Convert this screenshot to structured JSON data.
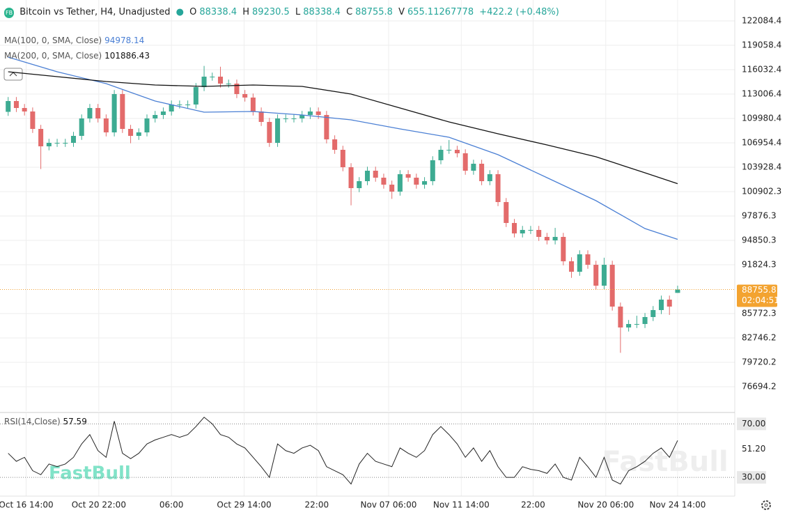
{
  "header": {
    "title": "Bitcoin vs Tether, H4, Unadjusted",
    "logo": "FB",
    "ohlc_labels": [
      "O",
      "H",
      "L",
      "C",
      "V"
    ],
    "volume": 655.11267778,
    "change": "+422.2 (+0.48%)",
    "countdown": "02:04:51",
    "watermark": "FastBull"
  },
  "chart_data": [
    {
      "type": "candlestick",
      "up_color": "#3dab92",
      "down_color": "#e36b6b",
      "x": [
        0,
        1,
        2,
        3,
        4,
        5,
        6,
        7,
        8,
        9,
        10,
        11,
        12,
        13,
        14,
        15,
        16,
        17,
        18,
        19,
        20,
        21,
        22,
        23,
        24,
        25,
        26,
        27,
        28,
        29,
        30,
        31,
        32,
        33,
        34,
        35,
        36,
        37,
        38,
        39,
        40,
        41,
        42,
        43,
        44,
        45,
        46,
        47,
        48,
        49,
        50,
        51,
        52,
        53,
        54,
        55,
        56,
        57,
        58,
        59,
        60,
        61,
        62,
        63,
        64,
        65,
        66,
        67,
        68,
        69,
        70,
        71,
        72,
        73,
        74,
        75,
        76,
        77,
        78,
        79,
        80,
        81,
        82
      ],
      "open": [
        110800,
        112141,
        111277,
        110844,
        108683,
        106521,
        106953,
        106953,
        106953,
        107818,
        109980,
        111277,
        109980,
        108250,
        113006,
        108683,
        107818,
        108250,
        109980,
        110412,
        110844,
        111709,
        111709,
        111709,
        113870,
        115167,
        115167,
        114303,
        114303,
        113006,
        112573,
        110844,
        109547,
        106953,
        109980,
        109980,
        109980,
        110412,
        110844,
        110412,
        107386,
        106089,
        103927,
        101334,
        102198,
        103495,
        102630,
        101766,
        100901,
        103063,
        102630,
        101766,
        102198,
        104792,
        106089,
        106089,
        105657,
        103495,
        104360,
        102198,
        103063,
        99604,
        97011,
        95714,
        96146,
        96146,
        95281,
        94849,
        95281,
        92255,
        90958,
        93120,
        91823,
        89229,
        91823,
        86635,
        84042,
        84474,
        84474,
        85338,
        86203,
        87500,
        88338.4
      ],
      "high": [
        112641,
        112641,
        111777,
        111344,
        109183,
        107453,
        107453,
        107453,
        108318,
        110480,
        111777,
        111777,
        110480,
        113506,
        113506,
        109183,
        108750,
        110480,
        110912,
        111344,
        112209,
        112209,
        112209,
        114370,
        116500,
        115667,
        116400,
        114803,
        114803,
        113506,
        113073,
        111344,
        110047,
        110480,
        110480,
        110480,
        110912,
        111344,
        111344,
        110912,
        107886,
        106589,
        104427,
        102698,
        103995,
        103995,
        103130,
        102266,
        103563,
        103563,
        103130,
        102698,
        105292,
        106589,
        107300,
        106589,
        106157,
        104860,
        104860,
        103563,
        103563,
        100104,
        97511,
        96646,
        96646,
        96646,
        95781,
        96400,
        95781,
        92755,
        93620,
        93620,
        92323,
        92700,
        92323,
        87135,
        84974,
        85500,
        85838,
        86703,
        88000,
        88000,
        89230.5
      ],
      "low": [
        110300,
        110777,
        110344,
        108183,
        103700,
        106021,
        106453,
        106453,
        106453,
        107318,
        109480,
        109480,
        107750,
        107750,
        108183,
        106900,
        107318,
        107750,
        109480,
        109912,
        110344,
        111209,
        111209,
        111209,
        113370,
        114667,
        113803,
        113803,
        112506,
        112073,
        110344,
        109047,
        106453,
        106453,
        109480,
        109480,
        109480,
        109912,
        109912,
        106886,
        105589,
        103427,
        99200,
        100834,
        101698,
        102130,
        101266,
        100000,
        100401,
        102130,
        101266,
        101266,
        101698,
        104292,
        105589,
        105157,
        102995,
        102995,
        101698,
        101698,
        99104,
        96511,
        95214,
        95214,
        95646,
        94781,
        94349,
        94349,
        91755,
        90200,
        90458,
        91323,
        88729,
        88729,
        86135,
        80900,
        83542,
        83974,
        83974,
        84838,
        85703,
        85600,
        88338.4
      ],
      "close": [
        112141,
        111277,
        110844,
        108683,
        106521,
        106953,
        106953,
        106953,
        107818,
        109980,
        111277,
        109980,
        108250,
        113006,
        108683,
        107818,
        108250,
        109980,
        110412,
        110844,
        111709,
        111709,
        111709,
        113870,
        115167,
        115167,
        114303,
        114303,
        113006,
        112573,
        110844,
        109547,
        106953,
        109980,
        109980,
        109980,
        110412,
        110844,
        110412,
        107386,
        106089,
        103927,
        101334,
        102198,
        103495,
        102630,
        101766,
        100901,
        103063,
        102630,
        101766,
        102198,
        104792,
        106089,
        106089,
        105657,
        103495,
        104360,
        102198,
        103063,
        99604,
        97011,
        95714,
        96146,
        96146,
        95281,
        94849,
        95281,
        92255,
        90958,
        93120,
        91823,
        89229,
        91823,
        86635,
        84042,
        84474,
        84474,
        85338,
        86203,
        87500,
        86635,
        88755.8
      ],
      "series": [
        {
          "name": "MA(100, 0, SMA, Close)",
          "color": "#4a7fd4",
          "x": [
            0,
            6,
            12,
            18,
            24,
            30,
            36,
            42,
            48,
            54,
            60,
            66,
            72,
            78,
            82
          ],
          "values": [
            117588,
            115772,
            114303,
            112141,
            110758,
            110844,
            110412,
            109807,
            108683,
            107645,
            105484,
            102630,
            99777,
            96319,
            94978.14
          ]
        },
        {
          "name": "MA(200, 0, SMA, Close)",
          "color": "#111111",
          "x": [
            0,
            6,
            12,
            18,
            24,
            30,
            36,
            42,
            48,
            54,
            60,
            66,
            72,
            78,
            82
          ],
          "values": [
            115772,
            115167,
            114562,
            114130,
            113957,
            114130,
            113957,
            113006,
            111277,
            109547,
            108077,
            106694,
            105224,
            103236,
            101886.43
          ]
        }
      ],
      "xlim": [
        -1,
        89
      ],
      "xticks": [
        {
          "value": 2.2,
          "label": "Oct 16 14:00"
        },
        {
          "value": 11.1,
          "label": "Oct 20 22:00"
        },
        {
          "value": 20,
          "label": "06:00"
        },
        {
          "value": 28.9,
          "label": "Oct 29 14:00"
        },
        {
          "value": 37.8,
          "label": "22:00"
        },
        {
          "value": 46.6,
          "label": "Nov 07 06:00"
        },
        {
          "value": 55.5,
          "label": "Nov 11 14:00"
        },
        {
          "value": 64.3,
          "label": "22:00"
        },
        {
          "value": 73.2,
          "label": "Nov 20 06:00"
        },
        {
          "value": 82,
          "label": "Nov 24 14:00"
        }
      ],
      "ylim": [
        73667,
        124678
      ],
      "yticks": [
        122084.4,
        119058.4,
        116032.4,
        113006.4,
        109980.4,
        106954.4,
        103928.4,
        100902.3,
        97876.3,
        94850.3,
        91824.3,
        85772.3,
        82746.2,
        79720.2,
        76694.2
      ],
      "grid": true
    },
    {
      "type": "line",
      "title": "RSI(14,Close)",
      "color": "#222222",
      "x": [
        0,
        1,
        2,
        3,
        4,
        5,
        6,
        7,
        8,
        9,
        10,
        11,
        12,
        13,
        14,
        15,
        16,
        17,
        18,
        19,
        20,
        21,
        22,
        23,
        24,
        25,
        26,
        27,
        28,
        29,
        30,
        31,
        32,
        33,
        34,
        35,
        36,
        37,
        38,
        39,
        40,
        41,
        42,
        43,
        44,
        45,
        46,
        47,
        48,
        49,
        50,
        51,
        52,
        53,
        54,
        55,
        56,
        57,
        58,
        59,
        60,
        61,
        62,
        63,
        64,
        65,
        66,
        67,
        68,
        69,
        70,
        71,
        72,
        73,
        74,
        75,
        76,
        77,
        78,
        79,
        80,
        81,
        82
      ],
      "values": [
        48,
        42,
        45,
        35,
        32,
        40,
        38,
        40,
        45,
        55,
        62,
        50,
        45,
        72,
        48,
        44,
        48,
        55,
        58,
        60,
        62,
        60,
        62,
        68,
        75,
        70,
        62,
        60,
        55,
        52,
        45,
        38,
        30,
        55,
        50,
        48,
        52,
        54,
        50,
        38,
        35,
        32,
        25,
        40,
        48,
        42,
        40,
        38,
        52,
        48,
        45,
        50,
        62,
        68,
        62,
        55,
        45,
        52,
        42,
        50,
        38,
        30,
        30,
        38,
        36,
        35,
        33,
        40,
        30,
        28,
        45,
        38,
        30,
        45,
        28,
        25,
        35,
        38,
        42,
        48,
        52,
        45,
        57.59
      ],
      "xlim": [
        -1,
        89
      ],
      "ylim": [
        16,
        78
      ],
      "yticks": [
        {
          "value": 70,
          "label": "70.00"
        },
        {
          "value": 51.2,
          "label": "51.20"
        },
        {
          "value": 30,
          "label": "30.00"
        }
      ]
    }
  ]
}
